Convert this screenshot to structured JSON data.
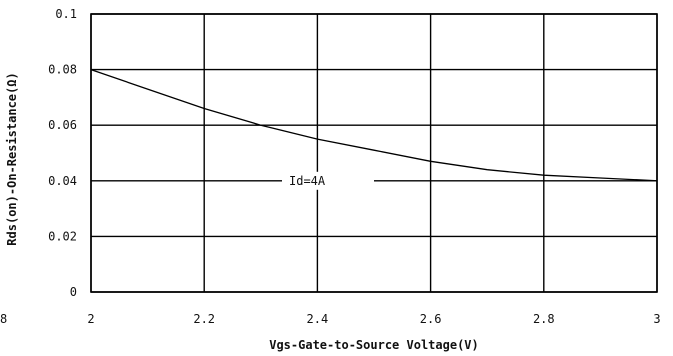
{
  "chart_data": {
    "type": "line",
    "xlabel": "Vgs-Gate-to-Source Voltage(V)",
    "ylabel": "Rds(on)-On-Resistance(Ω)",
    "xlim": [
      2,
      3
    ],
    "ylim": [
      0,
      0.1
    ],
    "x_ticks": [
      "2",
      "2.2",
      "2.4",
      "2.6",
      "2.8",
      "3"
    ],
    "y_ticks": [
      "0",
      "0.02",
      "0.04",
      "0.06",
      "0.08",
      "0.1"
    ],
    "partial_left_tick": "8",
    "grid": true,
    "series": [
      {
        "x": [
          2.0,
          2.1,
          2.2,
          2.3,
          2.4,
          2.5,
          2.6,
          2.7,
          2.8,
          2.9,
          3.0
        ],
        "y": [
          0.08,
          0.073,
          0.066,
          0.06,
          0.055,
          0.051,
          0.047,
          0.044,
          0.042,
          0.041,
          0.04
        ]
      }
    ],
    "annotation": {
      "text": "Id=4A",
      "x": 2.5,
      "y": 0.04
    }
  }
}
